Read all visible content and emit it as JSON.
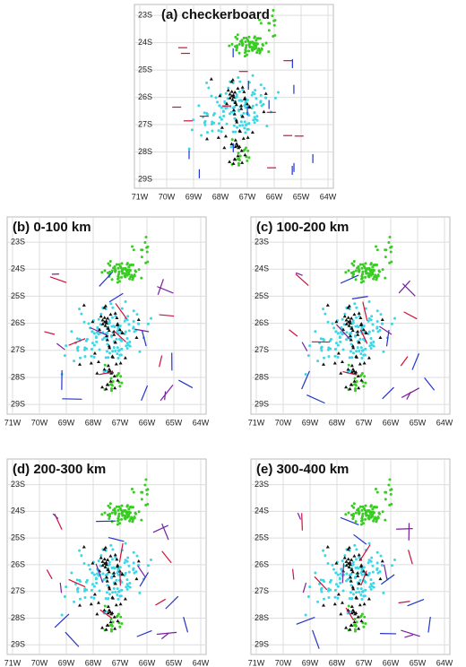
{
  "panels": [
    {
      "label": "(a)  checkerboard",
      "xlim": [
        -71.2,
        -63.8
      ],
      "ylim": [
        -29.33,
        -22.6
      ]
    },
    {
      "label": "(b)  0-100  km",
      "xlim": [
        -71.2,
        -63.8
      ],
      "ylim": [
        -29.36,
        -22.07
      ]
    },
    {
      "label": "(c)  100-200  km",
      "xlim": [
        -71.2,
        -63.8
      ],
      "ylim": [
        -29.36,
        -22.07
      ]
    },
    {
      "label": "(d)  200-300  km",
      "xlim": [
        -71.2,
        -63.8
      ],
      "ylim": [
        -29.36,
        -22.04
      ]
    },
    {
      "label": "(e)  300-400  km",
      "xlim": [
        -71.2,
        -63.8
      ],
      "ylim": [
        -29.36,
        -22.04
      ]
    }
  ],
  "xticks": [
    {
      "value": -71,
      "label": "71W"
    },
    {
      "value": -70,
      "label": "70W"
    },
    {
      "value": -69,
      "label": "69W"
    },
    {
      "value": -68,
      "label": "68W"
    },
    {
      "value": -67,
      "label": "67W"
    },
    {
      "value": -66,
      "label": "66W"
    },
    {
      "value": -65,
      "label": "65W"
    },
    {
      "value": -64,
      "label": "64W"
    }
  ],
  "yticks": [
    {
      "value": -23,
      "label": "23S"
    },
    {
      "value": -24,
      "label": "24S"
    },
    {
      "value": -25,
      "label": "25S"
    },
    {
      "value": -26,
      "label": "26S"
    },
    {
      "value": -27,
      "label": "27S"
    },
    {
      "value": -28,
      "label": "28S"
    },
    {
      "value": -29,
      "label": "29S"
    }
  ]
}
